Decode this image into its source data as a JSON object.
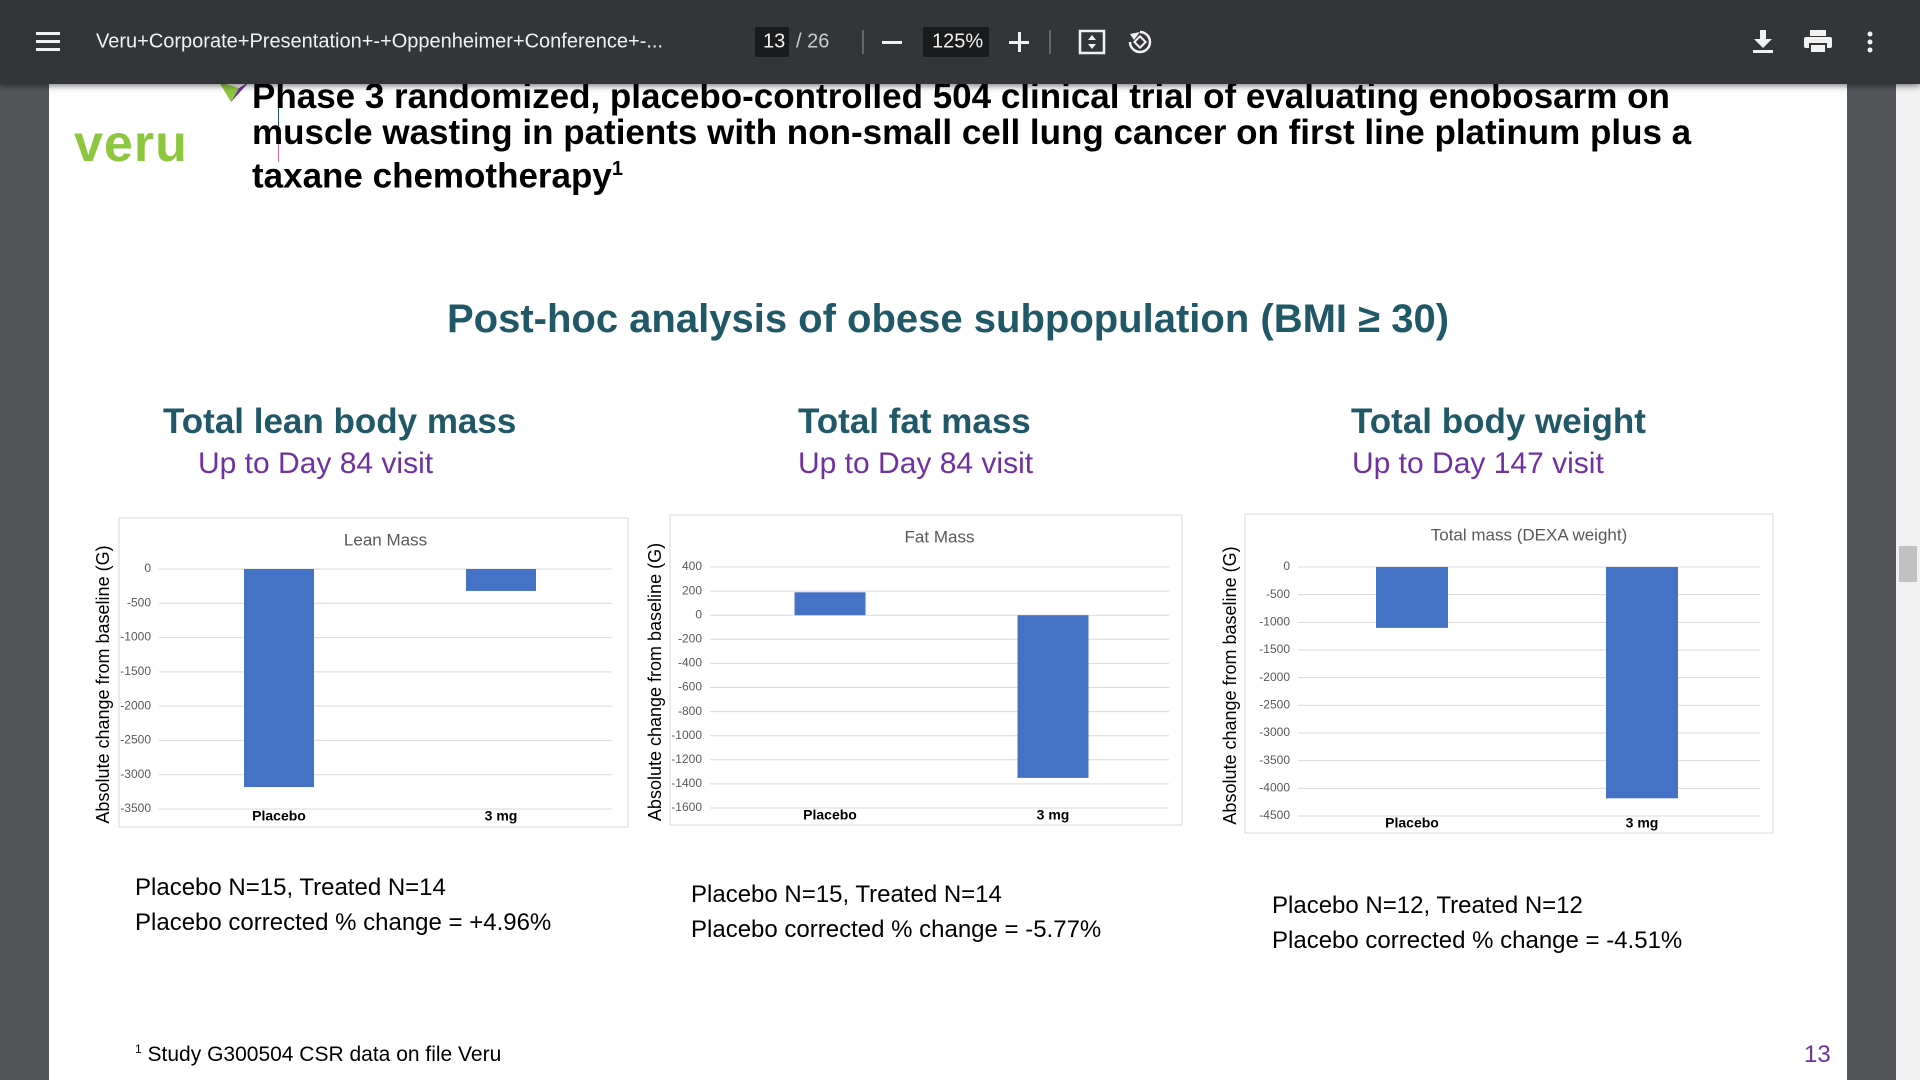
{
  "toolbar": {
    "document_title": "Veru+Corporate+Presentation+-+Oppenheimer+Conference+-...",
    "page_number": "13",
    "page_total": "/ 26",
    "zoom": "125%"
  },
  "slide": {
    "logo": "veru",
    "heading_lines": [
      "Phase 3 randomized, placebo-controlled 504 clinical trial of evaluating enobosarm on",
      "muscle wasting in patients with non-small cell lung cancer on first line platinum plus a",
      "taxane chemotherapy"
    ],
    "heading_note": "1",
    "subtitle": "Post-hoc analysis of obese subpopulation (BMI ≥ 30)",
    "panels": [
      {
        "title": "Total lean body mass",
        "subtitle": "Up to Day 84 visit",
        "notes": [
          "Placebo N=15, Treated N=14",
          "Placebo corrected % change = +4.96%"
        ]
      },
      {
        "title": "Total fat mass",
        "subtitle": "Up to Day 84 visit",
        "notes": [
          "Placebo N=15, Treated N=14",
          "Placebo corrected % change = -5.77%"
        ]
      },
      {
        "title": "Total body weight",
        "subtitle": "Up to Day 147 visit",
        "notes": [
          "Placebo N=12, Treated N=12",
          "Placebo corrected % change = -4.51%"
        ]
      }
    ],
    "footnote_mark": "1",
    "footnote": "Study G300504 CSR data on file Veru",
    "page_number": "13"
  },
  "chart_data": [
    {
      "type": "bar",
      "title": "Lean Mass",
      "y_label": "Absolute change from baseline (G)",
      "categories": [
        "Placebo",
        "3 mg"
      ],
      "values": [
        -3180,
        -320
      ],
      "color": "#4472c4",
      "ylim": [
        -3500,
        0
      ],
      "yticks": [
        0,
        -500,
        -1000,
        -1500,
        -2000,
        -2500,
        -3000,
        -3500
      ],
      "grid": true
    },
    {
      "type": "bar",
      "title": "Fat Mass",
      "y_label": "Absolute change from baseline (G)",
      "categories": [
        "Placebo",
        "3 mg"
      ],
      "values": [
        190,
        -1350
      ],
      "color": "#4472c4",
      "ylim": [
        -1600,
        400
      ],
      "yticks": [
        400,
        200,
        0,
        -200,
        -400,
        -600,
        -800,
        -1000,
        -1200,
        -1400,
        -1600
      ],
      "grid": true
    },
    {
      "type": "bar",
      "title": "Total mass (DEXA weight)",
      "y_label": "Absolute change from baseline (G)",
      "categories": [
        "Placebo",
        "3 mg"
      ],
      "values": [
        -1100,
        -4180
      ],
      "color": "#4472c4",
      "ylim": [
        -4500,
        0
      ],
      "yticks": [
        0,
        -500,
        -1000,
        -1500,
        -2000,
        -2500,
        -3000,
        -3500,
        -4000,
        -4500
      ],
      "grid": true
    }
  ]
}
